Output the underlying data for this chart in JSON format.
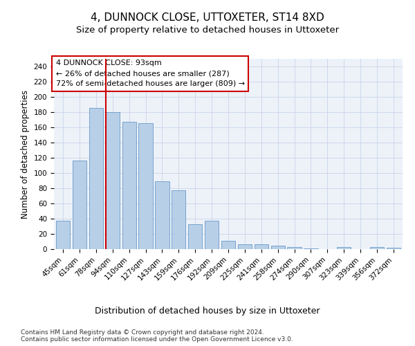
{
  "title": "4, DUNNOCK CLOSE, UTTOXETER, ST14 8XD",
  "subtitle": "Size of property relative to detached houses in Uttoxeter",
  "xlabel_bottom": "Distribution of detached houses by size in Uttoxeter",
  "ylabel": "Number of detached properties",
  "categories": [
    "45sqm",
    "61sqm",
    "78sqm",
    "94sqm",
    "110sqm",
    "127sqm",
    "143sqm",
    "159sqm",
    "176sqm",
    "192sqm",
    "209sqm",
    "225sqm",
    "241sqm",
    "258sqm",
    "274sqm",
    "290sqm",
    "307sqm",
    "323sqm",
    "339sqm",
    "356sqm",
    "372sqm"
  ],
  "values": [
    37,
    116,
    185,
    180,
    167,
    165,
    89,
    77,
    33,
    37,
    11,
    6,
    6,
    5,
    3,
    1,
    0,
    3,
    0,
    3,
    2
  ],
  "bar_color": "#b8cfe8",
  "bar_edge_color": "#6899c8",
  "vline_index": 3,
  "vline_color": "#cc0000",
  "annotation_line1": "4 DUNNOCK CLOSE: 93sqm",
  "annotation_line2": "← 26% of detached houses are smaller (287)",
  "annotation_line3": "72% of semi-detached houses are larger (809) →",
  "annotation_box_edgecolor": "#cc0000",
  "annotation_bg": "white",
  "ylim_max": 250,
  "ytick_max": 240,
  "ytick_step": 20,
  "footer_line1": "Contains HM Land Registry data © Crown copyright and database right 2024.",
  "footer_line2": "Contains public sector information licensed under the Open Government Licence v3.0.",
  "title_fontsize": 11,
  "subtitle_fontsize": 9.5,
  "ylabel_fontsize": 8.5,
  "tick_fontsize": 7.5,
  "annotation_fontsize": 8,
  "xlabel_fontsize": 9,
  "footer_fontsize": 6.5,
  "grid_color": "#cdd8ea",
  "bg_color": "#edf2f9"
}
